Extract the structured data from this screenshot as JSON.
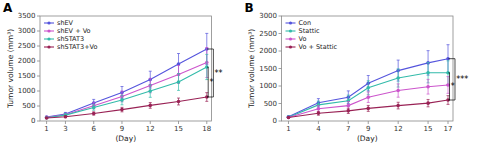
{
  "chart_data": [
    {
      "type": "line",
      "title": "A",
      "xlabel": "(Day)",
      "ylabel": "Tumor volume (mm³)",
      "x": [
        1,
        3,
        6,
        9,
        12,
        15,
        18
      ],
      "series": [
        {
          "name": "shEV",
          "color": "#5555dd",
          "marker": "circle",
          "values": [
            130,
            235,
            600,
            950,
            1380,
            1900,
            2400
          ],
          "err": [
            20,
            50,
            120,
            200,
            280,
            350,
            520
          ]
        },
        {
          "name": "shEV + Vo",
          "color": "#cc55cc",
          "marker": "circle",
          "values": [
            120,
            210,
            510,
            820,
            1180,
            1550,
            1950
          ],
          "err": [
            20,
            45,
            100,
            180,
            240,
            300,
            500
          ]
        },
        {
          "name": "shSTAT3",
          "color": "#33bbaa",
          "marker": "circle",
          "values": [
            110,
            195,
            450,
            700,
            1000,
            1300,
            1800
          ],
          "err": [
            15,
            40,
            90,
            160,
            210,
            280,
            420
          ]
        },
        {
          "name": "shSTAT3+Vo",
          "color": "#992255",
          "marker": "circle",
          "values": [
            100,
            140,
            250,
            380,
            520,
            650,
            800
          ],
          "err": [
            15,
            30,
            55,
            75,
            95,
            115,
            145
          ]
        }
      ],
      "xlim": [
        0.3,
        18.5
      ],
      "xticks": [
        1,
        3,
        6,
        9,
        12,
        15,
        18
      ],
      "ylim": [
        0,
        3500
      ],
      "yticks": [
        0,
        500,
        1000,
        1500,
        2000,
        2500,
        3000,
        3500
      ],
      "legend": "upper left",
      "grid": false,
      "brackets": [
        {
          "y_lo": 800,
          "y_hi": 1800,
          "label": "*"
        },
        {
          "y_lo": 800,
          "y_hi": 2400,
          "label": "**"
        }
      ]
    },
    {
      "type": "line",
      "title": "B",
      "xlabel": "(Day)",
      "ylabel": "Tumor volume (mm³)",
      "x": [
        1,
        4,
        7,
        9,
        12,
        15,
        17
      ],
      "series": [
        {
          "name": "Con",
          "color": "#5555dd",
          "marker": "circle",
          "values": [
            120,
            520,
            680,
            1080,
            1440,
            1660,
            1780
          ],
          "err": [
            20,
            120,
            180,
            220,
            300,
            350,
            400
          ]
        },
        {
          "name": "Stattic",
          "color": "#33bbaa",
          "marker": "circle",
          "values": [
            110,
            460,
            580,
            950,
            1230,
            1380,
            1380
          ],
          "err": [
            20,
            110,
            160,
            200,
            260,
            290,
            340
          ]
        },
        {
          "name": "Vo",
          "color": "#cc55cc",
          "marker": "circle",
          "values": [
            100,
            350,
            440,
            680,
            870,
            980,
            1030
          ],
          "err": [
            15,
            90,
            120,
            150,
            190,
            210,
            240
          ]
        },
        {
          "name": "Vo + Stattic",
          "color": "#992255",
          "marker": "circle",
          "values": [
            100,
            220,
            290,
            360,
            440,
            510,
            600
          ],
          "err": [
            15,
            55,
            75,
            85,
            95,
            105,
            125
          ]
        }
      ],
      "xlim": [
        0.3,
        17.5
      ],
      "xticks": [
        1,
        4,
        7,
        9,
        12,
        15,
        17
      ],
      "ylim": [
        0,
        3000
      ],
      "yticks": [
        0,
        500,
        1000,
        1500,
        2000,
        2500,
        3000
      ],
      "legend": "upper left",
      "grid": false,
      "brackets": [
        {
          "y_lo": 600,
          "y_hi": 1380,
          "label": "*"
        },
        {
          "y_lo": 600,
          "y_hi": 1780,
          "label": "***"
        }
      ]
    }
  ]
}
